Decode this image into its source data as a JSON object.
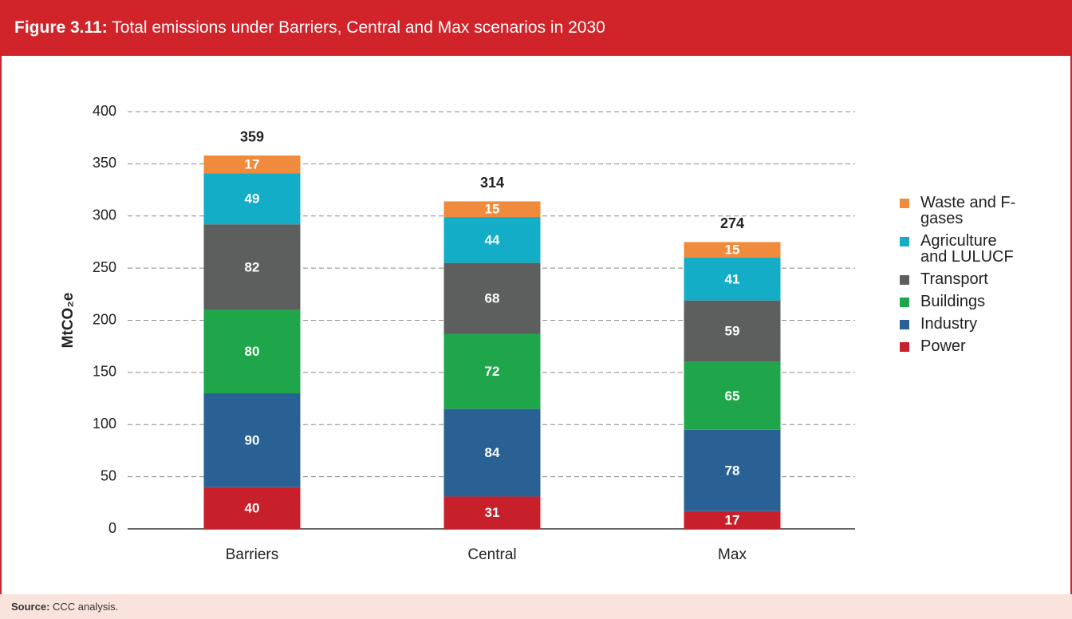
{
  "chart_data": {
    "type": "stacked_bar",
    "figure_label": "Figure 3.11:",
    "title": "Total emissions under Barriers, Central and Max scenarios in 2030",
    "y_label": "MtCO₂e",
    "source_label": "Source:",
    "source": "CCC analysis.",
    "categories": [
      "Barriers",
      "Central",
      "Max"
    ],
    "totals": [
      359,
      314,
      274
    ],
    "series": [
      {
        "name": "Power",
        "color": "#c8202a",
        "values": [
          40,
          31,
          17
        ]
      },
      {
        "name": "Industry",
        "color": "#2a6195",
        "values": [
          90,
          84,
          78
        ]
      },
      {
        "name": "Buildings",
        "color": "#20a64a",
        "values": [
          80,
          72,
          65
        ]
      },
      {
        "name": "Transport",
        "color": "#5d5f5f",
        "values": [
          82,
          68,
          59
        ]
      },
      {
        "name": "Agriculture and LULUCF",
        "color": "#13adc8",
        "values": [
          49,
          44,
          41
        ]
      },
      {
        "name": "Waste and F-gases",
        "color": "#f08a3c",
        "values": [
          17,
          15,
          15
        ]
      }
    ],
    "ylim": [
      0,
      400
    ],
    "yticks": [
      0,
      50,
      100,
      150,
      200,
      250,
      300,
      350,
      400
    ],
    "grid": true
  }
}
